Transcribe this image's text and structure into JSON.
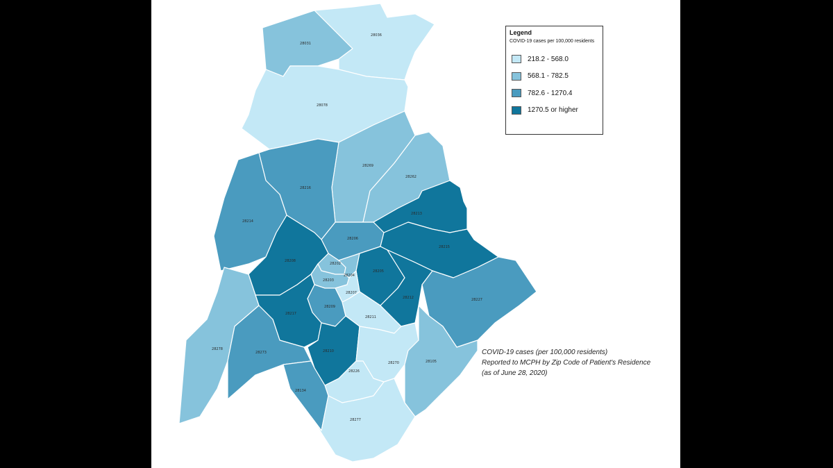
{
  "legend": {
    "title": "Legend",
    "subtitle": "COVID-19 cases per 100,000 residents",
    "items": [
      {
        "label": "218.2 - 568.0",
        "color": "#c3e8f6"
      },
      {
        "label": "568.1 - 782.5",
        "color": "#86c3dc"
      },
      {
        "label": "782.6 - 1270.4",
        "color": "#4a9bbf"
      },
      {
        "label": "1270.5 or higher",
        "color": "#10769c"
      }
    ]
  },
  "caption": {
    "line1": "COVID-19 cases (per 100,000 residents)",
    "line2": "Reported to MCPH by Zip Code of Patient's Residence",
    "line3": "(as of June 28, 2020)"
  },
  "zip_codes": [
    {
      "zip": "28031",
      "class": 2
    },
    {
      "zip": "28036",
      "class": 1
    },
    {
      "zip": "28078",
      "class": 1
    },
    {
      "zip": "28269",
      "class": 2
    },
    {
      "zip": "28262",
      "class": 2
    },
    {
      "zip": "28216",
      "class": 3
    },
    {
      "zip": "28214",
      "class": 3
    },
    {
      "zip": "28213",
      "class": 4
    },
    {
      "zip": "28206",
      "class": 3
    },
    {
      "zip": "28215",
      "class": 4
    },
    {
      "zip": "28208",
      "class": 4
    },
    {
      "zip": "28202",
      "class": 2
    },
    {
      "zip": "28204",
      "class": 2
    },
    {
      "zip": "28203",
      "class": 2
    },
    {
      "zip": "28205",
      "class": 4
    },
    {
      "zip": "28207",
      "class": 1
    },
    {
      "zip": "28209",
      "class": 3
    },
    {
      "zip": "28211",
      "class": 1
    },
    {
      "zip": "28212",
      "class": 4
    },
    {
      "zip": "28227",
      "class": 3
    },
    {
      "zip": "28217",
      "class": 4
    },
    {
      "zip": "28278",
      "class": 2
    },
    {
      "zip": "28273",
      "class": 3
    },
    {
      "zip": "28210",
      "class": 4
    },
    {
      "zip": "28270",
      "class": 1
    },
    {
      "zip": "28105",
      "class": 2
    },
    {
      "zip": "28226",
      "class": 1
    },
    {
      "zip": "28134",
      "class": 3
    },
    {
      "zip": "28277",
      "class": 1
    }
  ]
}
